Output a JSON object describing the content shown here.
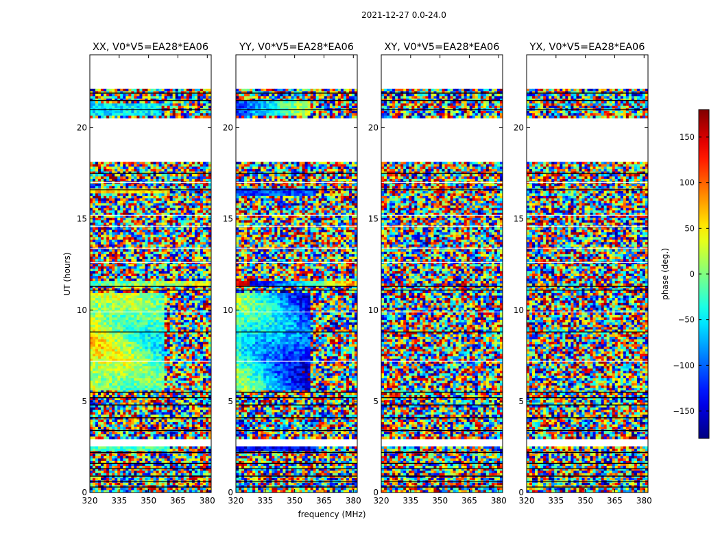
{
  "figure_title": "2021-12-27 0.0-24.0",
  "ylabel": "UT (hours)",
  "xlabel": "frequency (MHz)",
  "colorbar": {
    "label": "phase (deg.)",
    "ticks": [
      "150",
      "100",
      "50",
      "0",
      "−50",
      "−100",
      "−150"
    ],
    "tick_values": [
      150,
      100,
      50,
      0,
      -50,
      -100,
      -150
    ],
    "range": [
      -180,
      180
    ],
    "colormap": "jet"
  },
  "chart_data": [
    {
      "type": "heatmap",
      "title": "XX, V0*V5=EA28*EA06",
      "xlabel": "frequency (MHz)",
      "ylabel": "UT (hours)",
      "xlim": [
        320,
        382
      ],
      "ylim": [
        0,
        24
      ],
      "xticks": [
        320,
        335,
        350,
        365,
        380
      ],
      "yticks": [
        0,
        5,
        10,
        15,
        20
      ],
      "value": "phase (deg.)"
    },
    {
      "type": "heatmap",
      "title": "YY, V0*V5=EA28*EA06",
      "xlabel": "frequency (MHz)",
      "ylabel": "UT (hours)",
      "xlim": [
        320,
        382
      ],
      "ylim": [
        0,
        24
      ],
      "xticks": [
        320,
        335,
        350,
        365,
        380
      ],
      "yticks": [
        0,
        5,
        10,
        15,
        20
      ],
      "value": "phase (deg.)"
    },
    {
      "type": "heatmap",
      "title": "XY, V0*V5=EA28*EA06",
      "xlabel": "frequency (MHz)",
      "ylabel": "UT (hours)",
      "xlim": [
        320,
        382
      ],
      "ylim": [
        0,
        24
      ],
      "xticks": [
        320,
        335,
        350,
        365,
        380
      ],
      "yticks": [
        0,
        5,
        10,
        15,
        20
      ],
      "value": "phase (deg.)"
    },
    {
      "type": "heatmap",
      "title": "YX, V0*V5=EA28*EA06",
      "xlabel": "frequency (MHz)",
      "ylabel": "UT (hours)",
      "xlim": [
        320,
        382
      ],
      "ylim": [
        0,
        24
      ],
      "xticks": [
        320,
        335,
        350,
        365,
        380
      ],
      "yticks": [
        0,
        5,
        10,
        15,
        20
      ],
      "value": "phase (deg.)"
    }
  ],
  "data_gaps_hours": [
    [
      22.2,
      24.0
    ],
    [
      20.4,
      20.6
    ],
    [
      18.2,
      20.4
    ],
    [
      2.5,
      3.0
    ]
  ],
  "flag_lines_hours": [
    0.3,
    0.6,
    0.9,
    1.3,
    1.6,
    2.2,
    3.4,
    4.1,
    4.8,
    5.2,
    5.5,
    8.8,
    11.1,
    11.3,
    16.6,
    17.5,
    21.0,
    21.5,
    21.9
  ]
}
